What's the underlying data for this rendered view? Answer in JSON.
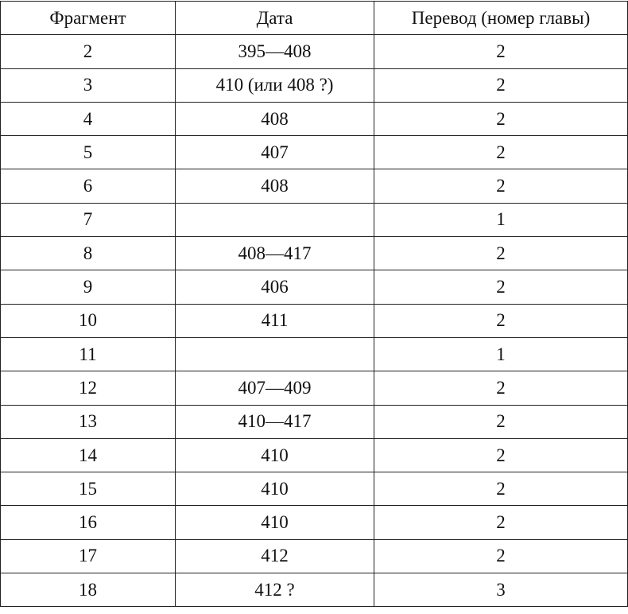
{
  "table": {
    "headers": [
      "Фрагмент",
      "Дата",
      "Перевод (номер главы)"
    ],
    "rows": [
      [
        "2",
        "395—408",
        "2"
      ],
      [
        "3",
        "410 (или 408 ?)",
        "2"
      ],
      [
        "4",
        "408",
        "2"
      ],
      [
        "5",
        "407",
        "2"
      ],
      [
        "6",
        "408",
        "2"
      ],
      [
        "7",
        "",
        "1"
      ],
      [
        "8",
        "408—417",
        "2"
      ],
      [
        "9",
        "406",
        "2"
      ],
      [
        "10",
        "411",
        "2"
      ],
      [
        "11",
        "",
        "1"
      ],
      [
        "12",
        "407—409",
        "2"
      ],
      [
        "13",
        "410—417",
        "2"
      ],
      [
        "14",
        "410",
        "2"
      ],
      [
        "15",
        "410",
        "2"
      ],
      [
        "16",
        "410",
        "2"
      ],
      [
        "17",
        "412",
        "2"
      ],
      [
        "18",
        "412 ?",
        "3"
      ]
    ]
  }
}
